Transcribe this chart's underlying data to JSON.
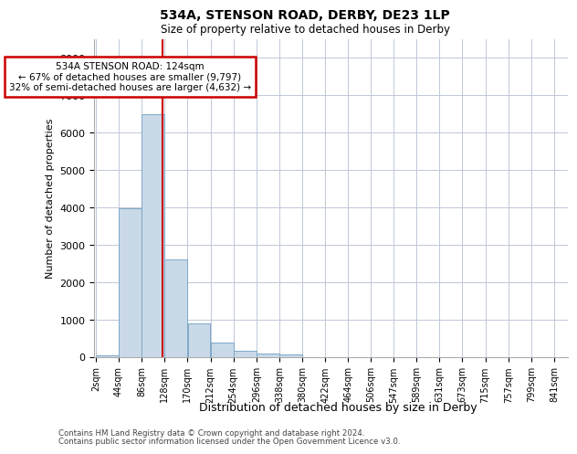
{
  "title": "534A, STENSON ROAD, DERBY, DE23 1LP",
  "subtitle": "Size of property relative to detached houses in Derby",
  "xlabel": "Distribution of detached houses by size in Derby",
  "ylabel": "Number of detached properties",
  "footer_line1": "Contains HM Land Registry data © Crown copyright and database right 2024.",
  "footer_line2": "Contains public sector information licensed under the Open Government Licence v3.0.",
  "property_size": 124,
  "property_label": "534A STENSON ROAD: 124sqm",
  "annotation_line1": "← 67% of detached houses are smaller (9,797)",
  "annotation_line2": "32% of semi-detached houses are larger (4,632) →",
  "bin_edges": [
    2,
    44,
    86,
    128,
    170,
    212,
    254,
    296,
    338,
    380,
    422,
    464,
    506,
    547,
    589,
    631,
    673,
    715,
    757,
    799,
    841
  ],
  "bar_heights": [
    30,
    3980,
    6500,
    2600,
    900,
    380,
    150,
    90,
    50,
    0,
    0,
    0,
    0,
    0,
    0,
    0,
    0,
    0,
    0,
    0
  ],
  "bar_color": "#c9d9e8",
  "bar_edge_color": "#7fa8c9",
  "marker_color": "#cc0000",
  "background_color": "#ffffff",
  "grid_color": "#c0c8d8",
  "ylim": [
    0,
    8500
  ],
  "yticks": [
    0,
    1000,
    2000,
    3000,
    4000,
    5000,
    6000,
    7000,
    8000
  ],
  "annotation_box_color": "#cc0000",
  "title_fontsize": 10,
  "subtitle_fontsize": 8.5,
  "ylabel_fontsize": 8,
  "xlabel_fontsize": 9,
  "tick_fontsize": 7,
  "ytick_fontsize": 8,
  "annot_fontsize": 7.5,
  "footer_fontsize": 6.2
}
